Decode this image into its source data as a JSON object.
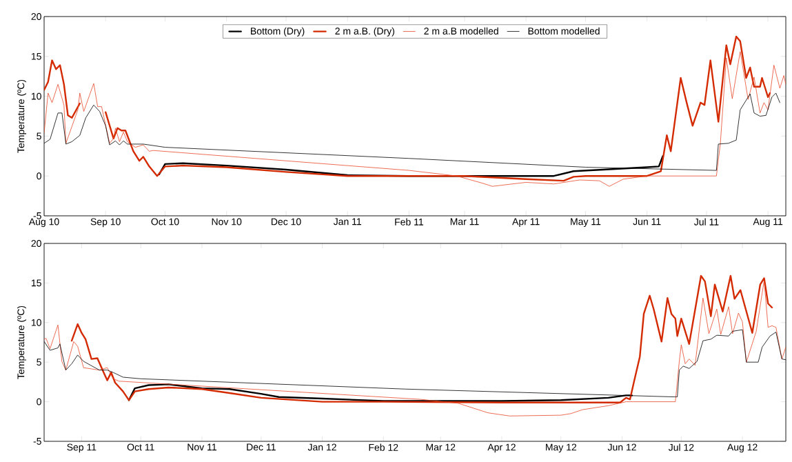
{
  "chart_data": [
    {
      "type": "line",
      "ylabel": "Temperature (ºC)",
      "xlim": [
        "2010-08-01",
        "2011-08-10"
      ],
      "ylim": [
        -5,
        20
      ],
      "yticks": [
        -5,
        0,
        5,
        10,
        15,
        20
      ],
      "legend": "top",
      "xticks": [
        {
          "value": "2010-08-01",
          "label": "Aug 10"
        },
        {
          "value": "2010-09-01",
          "label": "Sep 10"
        },
        {
          "value": "2010-10-01",
          "label": "Oct 10"
        },
        {
          "value": "2010-11-01",
          "label": "Nov 10"
        },
        {
          "value": "2010-12-01",
          "label": "Dec 10"
        },
        {
          "value": "2011-01-01",
          "label": "Jan 11"
        },
        {
          "value": "2011-02-01",
          "label": "Feb 11"
        },
        {
          "value": "2011-03-01",
          "label": "Mar 11"
        },
        {
          "value": "2011-04-01",
          "label": "Apr 11"
        },
        {
          "value": "2011-05-01",
          "label": "May 11"
        },
        {
          "value": "2011-06-01",
          "label": "Jun 11"
        },
        {
          "value": "2011-07-01",
          "label": "Jul 11"
        },
        {
          "value": "2011-08-01",
          "label": "Aug 11"
        }
      ],
      "series": [
        {
          "name": "Bottom (Dry)",
          "color": "#000000",
          "x": [
            "2010-09-28",
            "2010-10-01",
            "2010-10-10",
            "2010-11-01",
            "2010-12-01",
            "2011-01-01",
            "2011-02-01",
            "2011-04-15",
            "2011-04-25",
            "2011-05-10",
            "2011-06-01",
            "2011-06-07",
            "2011-06-09"
          ],
          "values": [
            0.2,
            1.5,
            1.6,
            1.3,
            0.8,
            0.1,
            0,
            0,
            0.6,
            0.8,
            1.1,
            1.2,
            2.5
          ]
        },
        {
          "name": "2 m a.B. (Dry)",
          "color": "#d42a00",
          "x": [
            "2010-08-01",
            "2010-08-03",
            "2010-08-05",
            "2010-08-07",
            "2010-08-09",
            "2010-08-11",
            "2010-08-13",
            "2010-08-15",
            "2010-08-19",
            "2010-08-25",
            "2010-09-01",
            "2010-09-05",
            "2010-09-07",
            "2010-09-09",
            "2010-09-11",
            "2010-09-15",
            "2010-09-18",
            "2010-09-20",
            "2010-09-23",
            "2010-09-27",
            "2010-10-01",
            "2010-10-10",
            "2010-11-01",
            "2010-12-01",
            "2011-01-01",
            "2011-02-01",
            "2011-03-01",
            "2011-04-01",
            "2011-04-20",
            "2011-04-25",
            "2011-05-01",
            "2011-06-01",
            "2011-06-08",
            "2011-06-11",
            "2011-06-13",
            "2011-06-18",
            "2011-06-21",
            "2011-06-24",
            "2011-06-28",
            "2011-06-30",
            "2011-07-03",
            "2011-07-07",
            "2011-07-11",
            "2011-07-13",
            "2011-07-16",
            "2011-07-18",
            "2011-07-21",
            "2011-07-23",
            "2011-07-25",
            "2011-07-28",
            "2011-07-29",
            "2011-08-01",
            "2011-08-02"
          ],
          "values": [
            10.8,
            11.8,
            14.5,
            13.4,
            13.9,
            11.5,
            7.6,
            7.3,
            9.1,
            null,
            8.0,
            4.7,
            6.0,
            5.7,
            5.7,
            3.1,
            1.9,
            2.4,
            1.2,
            0.0,
            1.2,
            1.3,
            1.1,
            0.5,
            0.0,
            0.0,
            0.0,
            -0.4,
            -0.6,
            -0.1,
            0.0,
            0.0,
            0.6,
            5.1,
            3.1,
            12.3,
            9.2,
            6.3,
            9.2,
            8.9,
            14.5,
            6.8,
            16.4,
            14.0,
            17.5,
            16.9,
            12.3,
            13.6,
            11.2,
            11.2,
            12.3,
            9.9,
            10.4
          ]
        },
        {
          "name": "2 m a.B modelled",
          "color": "#e8472a",
          "x": [
            "2010-08-01",
            "2010-08-03",
            "2010-08-05",
            "2010-08-08",
            "2010-08-11",
            "2010-08-12",
            "2010-08-18",
            "2010-08-19",
            "2010-08-21",
            "2010-08-26",
            "2010-08-28",
            "2010-08-30",
            "2010-09-03",
            "2010-09-05",
            "2010-09-06",
            "2010-09-08",
            "2010-09-10",
            "2010-09-12",
            "2010-09-16",
            "2010-09-20",
            "2010-09-23",
            "2010-09-25",
            "2011-02-01",
            "2011-02-25",
            "2011-03-10",
            "2011-03-15",
            "2011-04-01",
            "2011-04-15",
            "2011-04-28",
            "2011-05-08",
            "2011-05-13",
            "2011-05-20",
            "2011-06-01",
            "2011-07-06",
            "2011-07-08",
            "2011-07-11",
            "2011-07-14",
            "2011-07-18",
            "2011-07-22",
            "2011-07-25",
            "2011-07-28",
            "2011-07-30",
            "2011-08-01",
            "2011-08-04",
            "2011-08-07",
            "2011-08-09",
            "2011-08-10"
          ],
          "values": [
            5.4,
            10.4,
            9.2,
            11.5,
            8.9,
            4.1,
            8.3,
            10.4,
            8.1,
            11.6,
            8.7,
            8.7,
            4.1,
            4.7,
            6.0,
            4.3,
            5.5,
            4.3,
            3.6,
            3.9,
            3.1,
            3.2,
            0.7,
            0.0,
            -0.9,
            -1.3,
            -0.8,
            -1.0,
            -0.5,
            -0.6,
            -1.3,
            -0.4,
            0.0,
            0.0,
            4.1,
            14.8,
            9.7,
            15.6,
            9.6,
            12.4,
            7.9,
            9.2,
            8.3,
            13.9,
            11.0,
            12.6,
            11.5
          ]
        },
        {
          "name": "Bottom modelled",
          "color": "#000000",
          "x": [
            "2010-08-01",
            "2010-08-04",
            "2010-08-08",
            "2010-08-10",
            "2010-08-12",
            "2010-08-15",
            "2010-08-19",
            "2010-08-22",
            "2010-08-26",
            "2010-08-29",
            "2010-09-01",
            "2010-09-03",
            "2010-09-06",
            "2010-09-08",
            "2010-09-10",
            "2010-09-12",
            "2010-09-20",
            "2010-10-01",
            "2011-02-01",
            "2011-05-01",
            "2011-07-06",
            "2011-07-07",
            "2011-07-12",
            "2011-07-16",
            "2011-07-18",
            "2011-07-23",
            "2011-07-25",
            "2011-07-28",
            "2011-07-31",
            "2011-08-03",
            "2011-08-05",
            "2011-08-07"
          ],
          "values": [
            4.1,
            4.6,
            7.9,
            7.9,
            4.0,
            4.3,
            5.1,
            7.3,
            8.9,
            8.1,
            6.3,
            3.9,
            4.4,
            3.9,
            4.4,
            4.0,
            4.0,
            3.6,
            2.2,
            1.1,
            0.7,
            4.0,
            4.1,
            4.5,
            8.3,
            10.3,
            7.9,
            7.5,
            7.6,
            9.9,
            10.4,
            9.2
          ]
        }
      ]
    },
    {
      "type": "line",
      "ylabel": "Temperature (ºC)",
      "xlim": [
        "2011-08-13",
        "2012-08-23"
      ],
      "ylim": [
        -5,
        20
      ],
      "yticks": [
        -5,
        0,
        5,
        10,
        15,
        20
      ],
      "xticks": [
        {
          "value": "2011-09-01",
          "label": "Sep 11"
        },
        {
          "value": "2011-10-01",
          "label": "Oct 11"
        },
        {
          "value": "2011-11-01",
          "label": "Nov 11"
        },
        {
          "value": "2011-12-01",
          "label": "Dec 11"
        },
        {
          "value": "2012-01-01",
          "label": "Jan 12"
        },
        {
          "value": "2012-02-01",
          "label": "Feb 12"
        },
        {
          "value": "2012-03-01",
          "label": "Mar 12"
        },
        {
          "value": "2012-04-01",
          "label": "Apr 12"
        },
        {
          "value": "2012-05-01",
          "label": "May 12"
        },
        {
          "value": "2012-06-01",
          "label": "Jun 12"
        },
        {
          "value": "2012-07-01",
          "label": "Jul 12"
        },
        {
          "value": "2012-08-01",
          "label": "Aug 12"
        }
      ],
      "series": [
        {
          "color": "#000000",
          "x": [
            "2011-09-25",
            "2011-09-28",
            "2011-10-05",
            "2011-10-15",
            "2011-11-01",
            "2011-11-15",
            "2011-12-01",
            "2011-12-10",
            "2012-01-01",
            "2012-02-01",
            "2012-04-01",
            "2012-05-01",
            "2012-05-25",
            "2012-06-03",
            "2012-06-06"
          ],
          "values": [
            0.2,
            1.7,
            2.1,
            2.2,
            1.7,
            1.6,
            1.0,
            0.6,
            0.4,
            0.1,
            0.1,
            0.2,
            0.5,
            0.8,
            0.8
          ]
        },
        {
          "color": "#d42a00",
          "x": [
            "2011-08-27",
            "2011-08-30",
            "2011-09-01",
            "2011-09-03",
            "2011-09-06",
            "2011-09-09",
            "2011-09-12",
            "2011-09-14",
            "2011-09-16",
            "2011-09-18",
            "2011-09-22",
            "2011-09-25",
            "2011-09-28",
            "2011-10-05",
            "2011-10-15",
            "2011-11-01",
            "2011-11-15",
            "2011-12-01",
            "2012-01-01",
            "2012-02-01",
            "2012-04-01",
            "2012-05-31",
            "2012-06-03",
            "2012-06-05",
            "2012-06-07",
            "2012-06-10",
            "2012-06-12",
            "2012-06-15",
            "2012-06-17",
            "2012-06-21",
            "2012-06-24",
            "2012-06-26",
            "2012-06-28",
            "2012-06-29",
            "2012-07-01",
            "2012-07-05",
            "2012-07-11",
            "2012-07-13",
            "2012-07-16",
            "2012-07-18",
            "2012-07-22",
            "2012-07-26",
            "2012-07-28",
            "2012-07-31",
            "2012-08-03",
            "2012-08-06",
            "2012-08-10",
            "2012-08-12",
            "2012-08-14",
            "2012-08-16"
          ],
          "values": [
            7.7,
            9.8,
            8.7,
            7.9,
            5.4,
            5.5,
            3.8,
            2.7,
            3.7,
            2.4,
            1.3,
            0.2,
            1.3,
            1.6,
            1.8,
            1.6,
            1.1,
            0.5,
            0.0,
            0.0,
            -0.1,
            -0.1,
            0.5,
            0.3,
            2.5,
            5.7,
            11.1,
            13.4,
            11.7,
            7.6,
            13.1,
            11.1,
            10.5,
            8.3,
            10.5,
            7.3,
            15.9,
            15.2,
            10.8,
            14.8,
            11.4,
            15.9,
            13.0,
            14.1,
            11.4,
            8.7,
            14.8,
            15.6,
            12.4,
            11.9
          ]
        },
        {
          "color": "#e8472a",
          "x": [
            "2011-08-13",
            "2011-08-14",
            "2011-08-16",
            "2011-08-20",
            "2011-08-22",
            "2011-08-24",
            "2011-08-28",
            "2011-08-30",
            "2011-09-02",
            "2011-09-10",
            "2011-09-14",
            "2011-09-17",
            "2011-09-20",
            "2012-02-20",
            "2012-03-10",
            "2012-03-25",
            "2012-04-05",
            "2012-05-01",
            "2012-05-06",
            "2012-05-12",
            "2012-05-25",
            "2012-06-03",
            "2012-06-28",
            "2012-06-30",
            "2012-07-01",
            "2012-07-03",
            "2012-07-05",
            "2012-07-08",
            "2012-07-12",
            "2012-07-15",
            "2012-07-19",
            "2012-07-21",
            "2012-07-25",
            "2012-07-27",
            "2012-07-30",
            "2012-08-01",
            "2012-08-03",
            "2012-08-08",
            "2012-08-12",
            "2012-08-14",
            "2012-08-16",
            "2012-08-18",
            "2012-08-21",
            "2012-08-23"
          ],
          "values": [
            7.9,
            8.0,
            6.7,
            9.7,
            5.1,
            4.0,
            7.6,
            7.0,
            4.3,
            4.0,
            4.3,
            2.9,
            2.6,
            0.3,
            -0.2,
            -1.4,
            -1.8,
            -1.7,
            -1.5,
            -1.0,
            -0.5,
            0.0,
            0.0,
            5.1,
            7.2,
            4.8,
            5.4,
            4.6,
            13.1,
            8.6,
            11.7,
            8.5,
            12.0,
            8.6,
            11.2,
            10.1,
            5.0,
            8.9,
            15.3,
            9.4,
            9.6,
            9.4,
            5.4,
            6.9
          ]
        },
        {
          "color": "#000000",
          "x": [
            "2011-08-13",
            "2011-08-16",
            "2011-08-20",
            "2011-08-21",
            "2011-08-24",
            "2011-08-27",
            "2011-08-30",
            "2011-09-02",
            "2011-09-10",
            "2011-09-14",
            "2011-09-17",
            "2011-09-22",
            "2011-10-01",
            "2012-02-12",
            "2012-06-29",
            "2012-06-30",
            "2012-07-02",
            "2012-07-05",
            "2012-07-09",
            "2012-07-12",
            "2012-07-16",
            "2012-07-19",
            "2012-07-25",
            "2012-07-27",
            "2012-08-01",
            "2012-08-03",
            "2012-08-09",
            "2012-08-11",
            "2012-08-15",
            "2012-08-18",
            "2012-08-21",
            "2012-08-23"
          ],
          "values": [
            7.6,
            6.5,
            6.8,
            7.3,
            4.0,
            4.8,
            5.9,
            5.1,
            4.0,
            4.0,
            3.7,
            3.1,
            2.9,
            1.6,
            0.6,
            4.0,
            4.5,
            4.2,
            5.1,
            7.7,
            7.9,
            8.4,
            8.3,
            8.9,
            9.1,
            5.0,
            5.0,
            6.9,
            8.3,
            8.8,
            5.4,
            5.3
          ]
        }
      ]
    }
  ]
}
